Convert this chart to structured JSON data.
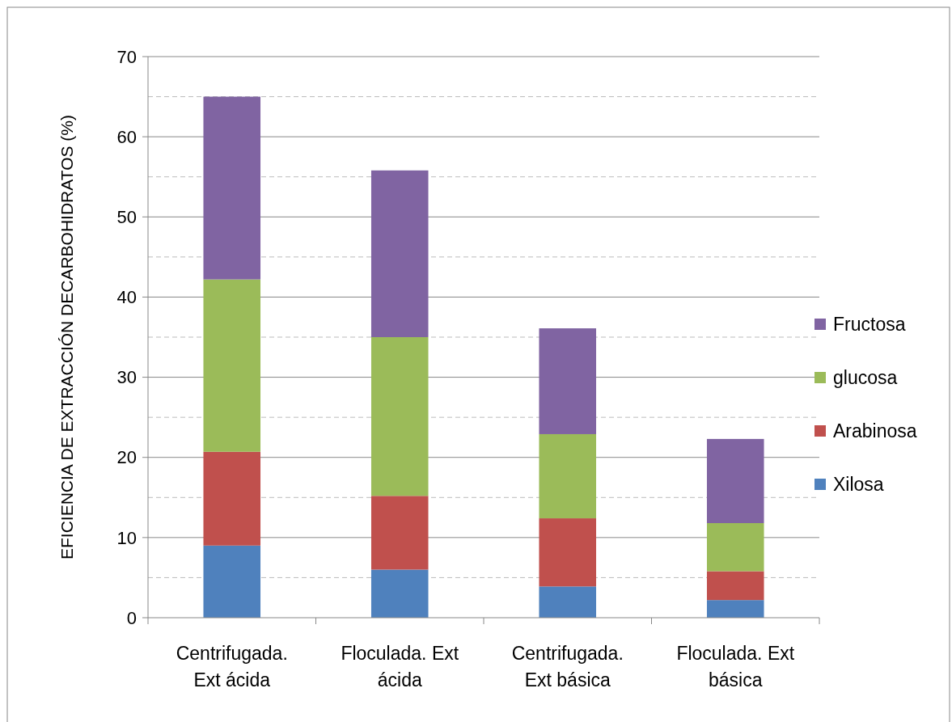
{
  "chart_data": {
    "type": "bar",
    "stacked": true,
    "ylabel": "EFICIENCIA  DE EXTRACCIÓN DECARBOHIDRATOS   (%)",
    "categories": [
      "Centrifugada. Ext ácida",
      "Floculada. Ext ácida",
      "Centrifugada. Ext básica",
      "Floculada. Ext básica"
    ],
    "series": [
      {
        "name": "Xilosa",
        "color": "#4f81bd",
        "values": [
          9,
          6,
          3.9,
          2.2
        ]
      },
      {
        "name": "Arabinosa",
        "color": "#c0504d",
        "values": [
          11.7,
          9.2,
          8.5,
          3.6
        ]
      },
      {
        "name": "glucosa",
        "color": "#9bbb59",
        "values": [
          21.5,
          19.8,
          10.5,
          6.0
        ]
      },
      {
        "name": "Fructosa",
        "color": "#8064a2",
        "values": [
          22.8,
          20.8,
          13.2,
          10.5
        ]
      }
    ],
    "ylim": [
      0,
      70
    ],
    "yticks": [
      0,
      {
        "value": 5,
        "label": null
      },
      10,
      {
        "value": 15,
        "label": null
      },
      20,
      {
        "value": 25,
        "label": null
      },
      30,
      {
        "value": 35,
        "label": null
      },
      40,
      {
        "value": 45,
        "label": null
      },
      50,
      {
        "value": 55,
        "label": null
      },
      60,
      {
        "value": 65,
        "label": null
      },
      70
    ],
    "grid": "y",
    "legend": "right"
  }
}
